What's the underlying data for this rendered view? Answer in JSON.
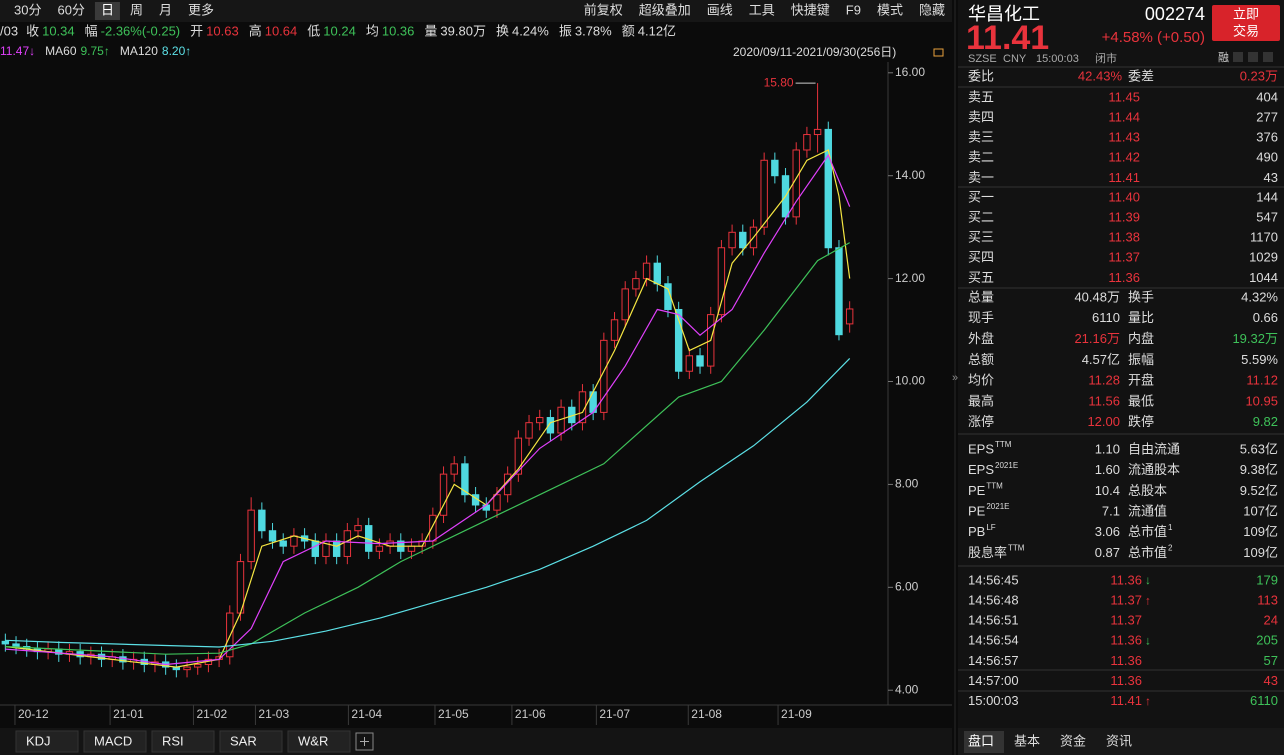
{
  "toolbar": {
    "periods": [
      "30分",
      "60分",
      "日",
      "周",
      "月",
      "更多"
    ],
    "tools": [
      "前复权",
      "超级叠加",
      "画线",
      "工具",
      "快捷键",
      "F9",
      "模式",
      "隐藏"
    ]
  },
  "quote_bar": {
    "date": "/03",
    "items": [
      {
        "label": "收",
        "value": "10.34",
        "color": "#3ec159"
      },
      {
        "label": "幅",
        "value": "-2.36%(-0.25)",
        "color": "#3ec159"
      },
      {
        "label": "开",
        "value": "10.63",
        "color": "#e8333c"
      },
      {
        "label": "高",
        "value": "10.64",
        "color": "#e8333c"
      },
      {
        "label": "低",
        "value": "10.24",
        "color": "#3ec159"
      },
      {
        "label": "均",
        "value": "10.36",
        "color": "#3ec159"
      },
      {
        "label": "量",
        "value": "39.80万",
        "color": "#dddddd"
      },
      {
        "label": "换",
        "value": "4.24%",
        "color": "#dddddd"
      },
      {
        "label": "振",
        "value": "3.78%",
        "color": "#dddddd"
      },
      {
        "label": "额",
        "value": "4.12亿",
        "color": "#dddddd"
      }
    ]
  },
  "chart_data": {
    "type": "candlestick",
    "date_range": "2020/09/11-2021/09/30(256日)",
    "ma_legend": [
      {
        "value": "11.47↓",
        "color": "#e040fb"
      },
      {
        "label": "MA60",
        "value": "9.75↑",
        "color": "#3ec159"
      },
      {
        "label": "MA120",
        "value": "8.20↑",
        "color": "#5ce0e6"
      }
    ],
    "high_label": "15.80",
    "up_color": "#e8333c",
    "down_color": "#4fd9e0",
    "ylim": [
      3.81,
      16.21
    ],
    "yticks": [
      {
        "value": 16,
        "label": "16.00"
      },
      {
        "value": 14,
        "label": "14.00"
      },
      {
        "value": 12,
        "label": "12.00"
      },
      {
        "value": 10,
        "label": "10.00"
      },
      {
        "value": 8,
        "label": "8.00"
      },
      {
        "value": 6,
        "label": "6.00"
      },
      {
        "value": 4,
        "label": "4.00"
      }
    ],
    "xlim": [
      -0.5,
      79.5
    ],
    "xticks": [
      {
        "value": 0.9,
        "label": "20-12"
      },
      {
        "value": 9.8,
        "label": "21-01"
      },
      {
        "value": 17.6,
        "label": "21-02"
      },
      {
        "value": 23.4,
        "label": "21-03"
      },
      {
        "value": 32.1,
        "label": "21-04"
      },
      {
        "value": 40.2,
        "label": "21-05"
      },
      {
        "value": 47.4,
        "label": "21-06"
      },
      {
        "value": 55.3,
        "label": "21-07"
      },
      {
        "value": 63.9,
        "label": "21-08"
      },
      {
        "value": 72.3,
        "label": "21-09"
      }
    ],
    "candles": [
      [
        4.95,
        5.1,
        4.75,
        4.9
      ],
      [
        4.9,
        5.05,
        4.7,
        4.85
      ],
      [
        4.85,
        5.0,
        4.65,
        4.8
      ],
      [
        4.8,
        4.95,
        4.6,
        4.75
      ],
      [
        4.75,
        4.95,
        4.6,
        4.8
      ],
      [
        4.8,
        4.95,
        4.55,
        4.7
      ],
      [
        4.7,
        4.9,
        4.55,
        4.75
      ],
      [
        4.75,
        4.9,
        4.5,
        4.65
      ],
      [
        4.65,
        4.85,
        4.5,
        4.7
      ],
      [
        4.7,
        4.85,
        4.45,
        4.6
      ],
      [
        4.6,
        4.8,
        4.45,
        4.65
      ],
      [
        4.65,
        4.8,
        4.4,
        4.55
      ],
      [
        4.55,
        4.75,
        4.4,
        4.6
      ],
      [
        4.6,
        4.75,
        4.35,
        4.5
      ],
      [
        4.5,
        4.7,
        4.35,
        4.55
      ],
      [
        4.55,
        4.7,
        4.3,
        4.45
      ],
      [
        4.45,
        4.6,
        4.25,
        4.4
      ],
      [
        4.4,
        4.6,
        4.25,
        4.45
      ],
      [
        4.45,
        4.65,
        4.3,
        4.5
      ],
      [
        4.5,
        4.75,
        4.35,
        4.6
      ],
      [
        4.6,
        4.8,
        4.45,
        4.65
      ],
      [
        4.65,
        5.65,
        4.5,
        5.5
      ],
      [
        5.5,
        6.65,
        5.35,
        6.5
      ],
      [
        6.5,
        7.75,
        6.35,
        7.5
      ],
      [
        7.5,
        7.65,
        6.95,
        7.1
      ],
      [
        7.1,
        7.25,
        6.75,
        6.9
      ],
      [
        6.9,
        7.05,
        6.65,
        6.8
      ],
      [
        6.8,
        7.15,
        6.65,
        7.0
      ],
      [
        7.0,
        7.15,
        6.75,
        6.9
      ],
      [
        6.9,
        7.05,
        6.45,
        6.6
      ],
      [
        6.6,
        7.05,
        6.45,
        6.9
      ],
      [
        6.9,
        7.05,
        6.45,
        6.6
      ],
      [
        6.6,
        7.25,
        6.45,
        7.1
      ],
      [
        7.1,
        7.35,
        6.95,
        7.2
      ],
      [
        7.2,
        7.35,
        6.55,
        6.7
      ],
      [
        6.7,
        6.95,
        6.55,
        6.8
      ],
      [
        6.8,
        7.05,
        6.65,
        6.9
      ],
      [
        6.9,
        7.05,
        6.55,
        6.7
      ],
      [
        6.7,
        6.95,
        6.55,
        6.8
      ],
      [
        6.8,
        7.05,
        6.65,
        6.9
      ],
      [
        6.9,
        7.55,
        6.75,
        7.4
      ],
      [
        7.4,
        8.35,
        7.25,
        8.2
      ],
      [
        8.2,
        8.55,
        8.05,
        8.4
      ],
      [
        8.4,
        8.55,
        7.65,
        7.8
      ],
      [
        7.8,
        7.95,
        7.45,
        7.6
      ],
      [
        7.6,
        7.75,
        7.35,
        7.5
      ],
      [
        7.5,
        7.95,
        7.35,
        7.8
      ],
      [
        7.8,
        8.35,
        7.65,
        8.2
      ],
      [
        8.2,
        9.05,
        8.05,
        8.9
      ],
      [
        8.9,
        9.35,
        8.75,
        9.2
      ],
      [
        9.2,
        9.45,
        9.05,
        9.3
      ],
      [
        9.3,
        9.45,
        8.85,
        9.0
      ],
      [
        9.0,
        9.65,
        8.85,
        9.5
      ],
      [
        9.5,
        9.65,
        9.05,
        9.2
      ],
      [
        9.2,
        9.95,
        9.05,
        9.8
      ],
      [
        9.8,
        9.95,
        9.25,
        9.4
      ],
      [
        9.4,
        10.95,
        9.25,
        10.8
      ],
      [
        10.8,
        11.35,
        10.65,
        11.2
      ],
      [
        11.2,
        11.95,
        11.05,
        11.8
      ],
      [
        11.8,
        12.15,
        11.65,
        12.0
      ],
      [
        12.0,
        12.45,
        11.85,
        12.3
      ],
      [
        12.3,
        12.45,
        11.75,
        11.9
      ],
      [
        11.9,
        12.05,
        11.25,
        11.4
      ],
      [
        11.4,
        11.55,
        10.05,
        10.2
      ],
      [
        10.2,
        10.65,
        10.05,
        10.5
      ],
      [
        10.5,
        10.65,
        10.15,
        10.3
      ],
      [
        10.3,
        11.45,
        10.15,
        11.3
      ],
      [
        11.3,
        12.75,
        11.15,
        12.6
      ],
      [
        12.6,
        13.05,
        12.45,
        12.9
      ],
      [
        12.9,
        13.05,
        12.45,
        12.6
      ],
      [
        12.6,
        13.15,
        12.45,
        13.0
      ],
      [
        13.0,
        14.45,
        12.85,
        14.3
      ],
      [
        14.3,
        14.45,
        13.85,
        14.0
      ],
      [
        14.0,
        14.15,
        13.05,
        13.2
      ],
      [
        13.2,
        14.65,
        13.05,
        14.5
      ],
      [
        14.5,
        14.95,
        14.35,
        14.8
      ],
      [
        14.8,
        15.8,
        14.45,
        14.9
      ],
      [
        14.9,
        15.05,
        12.45,
        12.6
      ],
      [
        12.6,
        12.75,
        10.8,
        10.91
      ],
      [
        11.12,
        11.56,
        10.95,
        11.41
      ]
    ],
    "ma_lines": [
      {
        "color": "#f5e642",
        "x": [
          0,
          10,
          16,
          20,
          22,
          24,
          27,
          31,
          33,
          36,
          39,
          42,
          45,
          48,
          51,
          54,
          57,
          60,
          62,
          64,
          66,
          68,
          70,
          73,
          75,
          77,
          78,
          79
        ],
        "values": [
          4.85,
          4.6,
          4.45,
          4.6,
          5.5,
          6.8,
          7.0,
          6.8,
          7.0,
          6.8,
          6.8,
          8.0,
          7.6,
          8.3,
          9.2,
          9.4,
          10.6,
          12.0,
          11.8,
          10.6,
          10.8,
          12.3,
          12.8,
          13.6,
          14.3,
          14.5,
          13.6,
          12.0
        ]
      },
      {
        "color": "#e040fb",
        "x": [
          0,
          10,
          15,
          20,
          23,
          26,
          30,
          35,
          40,
          45,
          50,
          55,
          58,
          61,
          63,
          65,
          68,
          71,
          74,
          77,
          79
        ],
        "values": [
          4.8,
          4.65,
          4.5,
          4.6,
          5.2,
          6.5,
          6.9,
          6.85,
          6.9,
          7.6,
          8.7,
          9.4,
          10.3,
          11.4,
          11.3,
          10.9,
          11.4,
          12.5,
          13.5,
          14.4,
          13.4
        ]
      },
      {
        "color": "#3ec159",
        "x": [
          0,
          5,
          10,
          15,
          20,
          23,
          28,
          33,
          37,
          43,
          50,
          56,
          63,
          67,
          71,
          76,
          79
        ],
        "values": [
          4.85,
          4.8,
          4.75,
          4.7,
          4.72,
          4.9,
          5.5,
          6.0,
          6.5,
          7.1,
          7.8,
          8.4,
          9.7,
          10.0,
          11.0,
          12.35,
          12.7
        ]
      },
      {
        "color": "#5ce0e6",
        "x": [
          0,
          5,
          10,
          15,
          20,
          25,
          30,
          35,
          40,
          45,
          50,
          55,
          60,
          65,
          70,
          75,
          79
        ],
        "values": [
          4.97,
          4.93,
          4.9,
          4.87,
          4.84,
          4.95,
          5.15,
          5.4,
          5.7,
          6.0,
          6.35,
          6.8,
          7.3,
          8.05,
          8.75,
          9.6,
          10.45
        ]
      }
    ]
  },
  "indicator_tabs": [
    "KDJ",
    "MACD",
    "RSI",
    "SAR",
    "W&R"
  ],
  "panel": {
    "name": "华昌化工",
    "code": "002274",
    "price": "11.41",
    "change": "+4.58% (+0.50)",
    "trade_button": [
      "立即",
      "交易"
    ],
    "meta": [
      "SZSE",
      "CNY",
      "15:00:03",
      "闭市"
    ],
    "margin_tag": "融",
    "ratio": {
      "label": "委比",
      "value": "42.43%",
      "label2": "委差",
      "value2": "0.23万"
    },
    "asks": [
      {
        "label": "卖五",
        "price": "11.45",
        "volume": "404"
      },
      {
        "label": "卖四",
        "price": "11.44",
        "volume": "277"
      },
      {
        "label": "卖三",
        "price": "11.43",
        "volume": "376"
      },
      {
        "label": "卖二",
        "price": "11.42",
        "volume": "490"
      },
      {
        "label": "卖一",
        "price": "11.41",
        "volume": "43"
      }
    ],
    "bids": [
      {
        "label": "买一",
        "price": "11.40",
        "volume": "144"
      },
      {
        "label": "买二",
        "price": "11.39",
        "volume": "547"
      },
      {
        "label": "买三",
        "price": "11.38",
        "volume": "1170"
      },
      {
        "label": "买四",
        "price": "11.37",
        "volume": "1029"
      },
      {
        "label": "买五",
        "price": "11.36",
        "volume": "1044"
      }
    ],
    "stats": [
      {
        "label": "总量",
        "value": "40.48万",
        "color": "#dddddd",
        "label2": "换手",
        "value2": "4.32%",
        "color2": "#dddddd"
      },
      {
        "label": "现手",
        "value": "6110",
        "color": "#dddddd",
        "label2": "量比",
        "value2": "0.66",
        "color2": "#dddddd"
      },
      {
        "label": "外盘",
        "value": "21.16万",
        "color": "#e8333c",
        "label2": "内盘",
        "value2": "19.32万",
        "color2": "#3ec159"
      },
      {
        "label": "总额",
        "value": "4.57亿",
        "color": "#dddddd",
        "label2": "振幅",
        "value2": "5.59%",
        "color2": "#dddddd"
      },
      {
        "label": "均价",
        "value": "11.28",
        "color": "#e8333c",
        "label2": "开盘",
        "value2": "11.12",
        "color2": "#e8333c"
      },
      {
        "label": "最高",
        "value": "11.56",
        "color": "#e8333c",
        "label2": "最低",
        "value2": "10.95",
        "color2": "#e8333c"
      },
      {
        "label": "涨停",
        "value": "12.00",
        "color": "#e8333c",
        "label2": "跌停",
        "value2": "9.82",
        "color2": "#3ec159"
      }
    ],
    "fundamentals": [
      {
        "label": "EPS",
        "sup": "TTM",
        "value": "1.10",
        "label2": "自由流通",
        "value2": "5.63亿"
      },
      {
        "label": "EPS",
        "sup": "2021E",
        "value": "1.60",
        "label2": "流通股本",
        "value2": "9.38亿"
      },
      {
        "label": "PE",
        "sup": "TTM",
        "value": "10.4",
        "label2": "总股本",
        "value2": "9.52亿"
      },
      {
        "label": "PE",
        "sup": "2021E",
        "value": "7.1",
        "label2": "流通值",
        "value2": "107亿"
      },
      {
        "label": "PB",
        "sup": "LF",
        "value": "3.06",
        "label2": "总市值",
        "sup2": "1",
        "value2": "109亿"
      },
      {
        "label": "股息率",
        "sup": "TTM",
        "value": "0.87",
        "label2": "总市值",
        "sup2": "2",
        "value2": "109亿"
      }
    ],
    "ticks": [
      {
        "time": "14:56:45",
        "price": "11.36",
        "arrow": "↓",
        "arrow_color": "#3ec159",
        "volume": "179",
        "volume_color": "#3ec159"
      },
      {
        "time": "14:56:48",
        "price": "11.37",
        "arrow": "↑",
        "arrow_color": "#e8333c",
        "volume": "113",
        "volume_color": "#e8333c"
      },
      {
        "time": "14:56:51",
        "price": "11.37",
        "volume": "24",
        "volume_color": "#e8333c"
      },
      {
        "time": "14:56:54",
        "price": "11.36",
        "arrow": "↓",
        "arrow_color": "#3ec159",
        "volume": "205",
        "volume_color": "#3ec159"
      },
      {
        "time": "14:56:57",
        "price": "11.36",
        "volume": "57",
        "volume_color": "#3ec159"
      },
      {
        "time": "14:57:00",
        "price": "11.36",
        "volume": "43",
        "volume_color": "#e8333c"
      },
      {
        "time": "15:00:03",
        "price": "11.41",
        "arrow": "↑",
        "arrow_color": "#e8333c",
        "volume": "6110",
        "volume_color": "#3ec159"
      }
    ],
    "tabs": [
      "盘口",
      "基本",
      "资金",
      "资讯"
    ]
  }
}
